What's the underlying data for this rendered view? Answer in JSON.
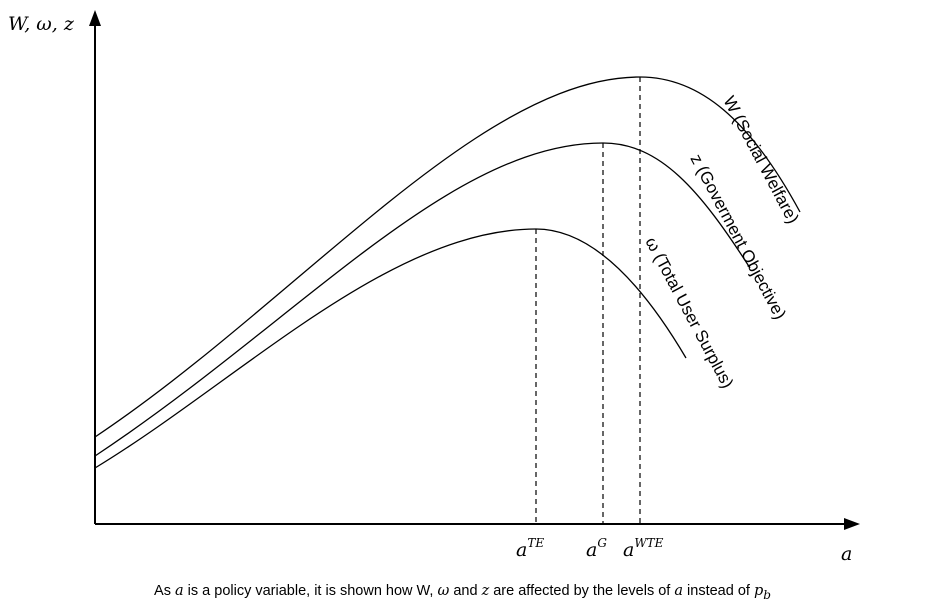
{
  "chart_data": {
    "type": "line",
    "y_axis_label": "W, ω, z",
    "x_axis_label": "a",
    "series": [
      {
        "name": "W (Social Welfare)",
        "peak_tick": "a^WTE"
      },
      {
        "name": "z (Goverment Objective)",
        "peak_tick": "a^G"
      },
      {
        "name": "ω (Total User Surplus)",
        "peak_tick": "a^TE"
      }
    ],
    "x_ticks": [
      {
        "base": "a",
        "sup": "TE"
      },
      {
        "base": "a",
        "sup": "G"
      },
      {
        "base": "a",
        "sup": "WTE"
      }
    ]
  },
  "caption": {
    "t1": "As ",
    "v1": "a",
    "t2": " is a policy variable, it is shown how W, ",
    "v2": "ω",
    "t3": " and ",
    "v3": "z",
    "t4": " are affected by the levels of ",
    "v4": "a",
    "t5": " instead of ",
    "v5": "p",
    "v5sub": "b"
  }
}
